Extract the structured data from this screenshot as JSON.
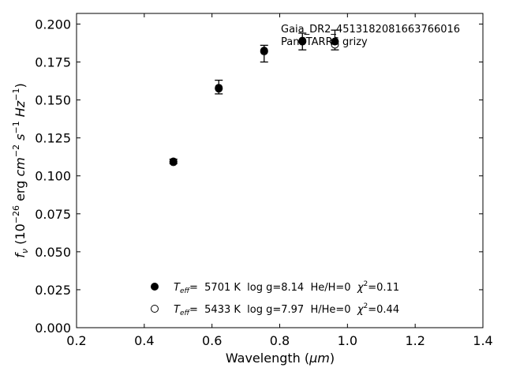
{
  "chart_data": {
    "type": "scatter",
    "title": "",
    "xlabel_main": "Wavelength (",
    "xlabel_unit": "μm",
    "xlabel_close": ")",
    "ylabel_f": "f",
    "ylabel_nu": "ν",
    "ylabel_open": " (10",
    "ylabel_e1": "−26",
    "ylabel_erg": " erg ",
    "ylabel_cm": "cm",
    "ylabel_e2": "−2",
    "ylabel_s": " s",
    "ylabel_e3": "−1",
    "ylabel_hz": " Hz",
    "ylabel_e4": "−1",
    "ylabel_close": ")",
    "xlim": [
      0.2,
      1.4
    ],
    "ylim": [
      0.0,
      0.207
    ],
    "xticks": [
      0.2,
      0.4,
      0.6,
      0.8,
      1.0,
      1.2,
      1.4
    ],
    "yticks": [
      0.0,
      0.025,
      0.05,
      0.075,
      0.1,
      0.125,
      0.15,
      0.175,
      0.2
    ],
    "xtick_labels": [
      "0.2",
      "0.4",
      "0.6",
      "0.8",
      "1.0",
      "1.2",
      "1.4"
    ],
    "ytick_labels": [
      "0.000",
      "0.025",
      "0.050",
      "0.075",
      "0.100",
      "0.125",
      "0.150",
      "0.175",
      "0.200"
    ],
    "annotation_line1": "Gaia_DR2_4513182081663766016",
    "annotation_line2": "PanSTARRS grizy",
    "observed": {
      "x": [
        0.486,
        0.62,
        0.754,
        0.867,
        0.963
      ],
      "y": [
        0.1095,
        0.1585,
        0.1805,
        0.1885,
        0.1895
      ],
      "yerr": [
        0.0015,
        0.0045,
        0.0055,
        0.0055,
        0.0065
      ]
    },
    "series": [
      {
        "marker": "filled",
        "label_T": "T",
        "label_eff": "eff",
        "label_params": "=  5701 K  log g=8.14  He/H=0  ",
        "label_chi": "χ",
        "label_chi_exp": "2",
        "label_chi_val": "=0.11",
        "x": [
          0.486,
          0.62,
          0.754,
          0.867,
          0.963
        ],
        "y": [
          0.1095,
          0.158,
          0.1825,
          0.189,
          0.1885
        ]
      },
      {
        "marker": "open",
        "label_T": "T",
        "label_eff": "eff",
        "label_params": "=  5433 K  log g=7.97  H/He=0  ",
        "label_chi": "χ",
        "label_chi_exp": "2",
        "label_chi_val": "=0.44",
        "x": [
          0.486,
          0.62,
          0.754,
          0.867,
          0.963
        ],
        "y": [
          0.109,
          0.1575,
          0.182,
          0.1885,
          0.1865
        ]
      }
    ],
    "grid": false,
    "legend_position": "lower-center"
  }
}
